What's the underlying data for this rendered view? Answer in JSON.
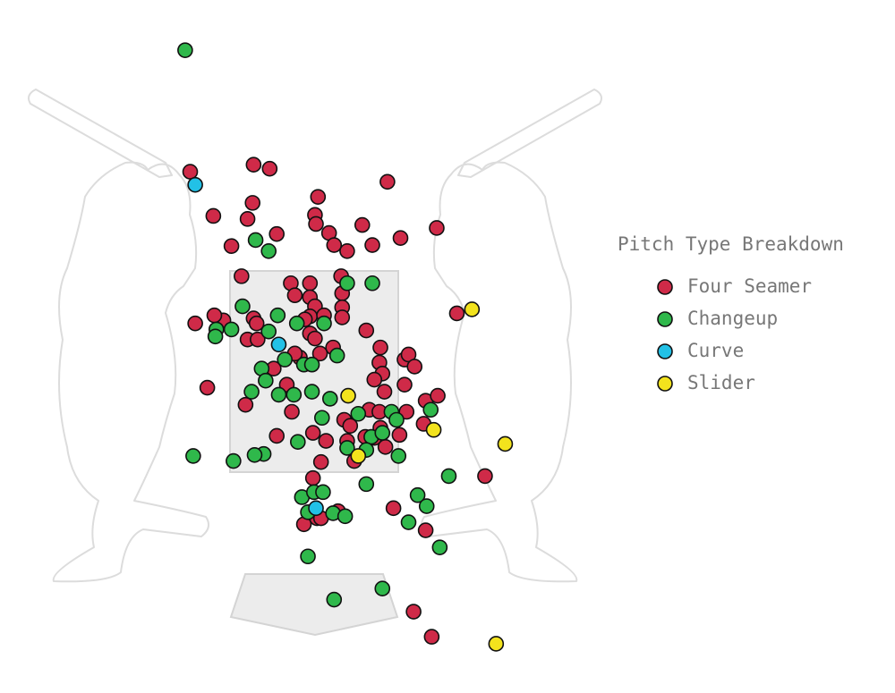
{
  "chart_data": {
    "type": "scatter",
    "legend_title": "Pitch Type Breakdown",
    "xlim": [
      -3.12,
      2.75
    ],
    "ylim": [
      -0.7,
      6.2
    ],
    "series": [
      {
        "name": "Four Seamer",
        "color": "#cf2a48",
        "x": [
          -1.23,
          -0.6,
          -0.44,
          0.73,
          0.04,
          -0.61,
          -1.0,
          -0.66,
          0.01,
          0.02,
          0.15,
          0.48,
          1.22,
          0.86,
          0.2,
          0.33,
          0.58,
          -0.82,
          -0.37,
          -0.72,
          -0.23,
          -0.04,
          0.27,
          -0.19,
          -0.04,
          0.28,
          0.01,
          0.28,
          -0.04,
          0.1,
          0.28,
          -0.09,
          -0.6,
          -0.57,
          -0.9,
          -0.99,
          -1.18,
          -0.66,
          -0.56,
          -0.04,
          0.01,
          0.52,
          0.66,
          0.19,
          0.06,
          -0.14,
          -0.19,
          -0.4,
          -0.27,
          -0.68,
          -1.06,
          0.65,
          0.68,
          0.9,
          0.94,
          1.0,
          0.6,
          0.7,
          0.9,
          1.11,
          1.23,
          -0.22,
          0.55,
          0.65,
          0.92,
          0.3,
          0.36,
          0.66,
          0.51,
          0.6,
          0.85,
          1.09,
          -0.01,
          0.12,
          -0.37,
          0.33,
          0.4,
          0.71,
          0.07,
          -0.01,
          0.79,
          0.24,
          0.03,
          -0.1,
          0.07,
          1.42,
          1.7,
          1.11,
          0.99,
          1.17
        ],
        "values": [
          4.49,
          4.56,
          4.52,
          4.39,
          4.24,
          4.18,
          4.05,
          4.02,
          4.06,
          3.97,
          3.88,
          3.96,
          3.93,
          3.83,
          3.76,
          3.7,
          3.76,
          3.75,
          3.87,
          3.45,
          3.38,
          3.38,
          3.45,
          3.26,
          3.24,
          3.28,
          3.15,
          3.14,
          3.05,
          3.06,
          3.04,
          3.02,
          3.03,
          2.98,
          3.01,
          3.06,
          2.98,
          2.82,
          2.82,
          2.88,
          2.83,
          2.91,
          2.74,
          2.74,
          2.68,
          2.64,
          2.68,
          2.53,
          2.37,
          2.17,
          2.34,
          2.59,
          2.48,
          2.62,
          2.67,
          2.55,
          2.42,
          2.3,
          2.37,
          2.21,
          2.26,
          2.1,
          2.12,
          2.1,
          2.1,
          2.02,
          1.96,
          1.94,
          1.85,
          1.84,
          1.87,
          1.98,
          1.89,
          1.81,
          1.86,
          1.81,
          1.61,
          1.75,
          1.6,
          1.44,
          1.14,
          1.11,
          1.04,
          0.98,
          1.04,
          3.08,
          1.46,
          0.92,
          0.11,
          -0.14
        ]
      },
      {
        "name": "Changeup",
        "color": "#2fb84b",
        "x": [
          -1.28,
          -0.58,
          -0.45,
          0.33,
          0.58,
          -0.71,
          -0.97,
          -0.98,
          -0.82,
          -0.45,
          -0.36,
          -0.17,
          -0.29,
          -0.52,
          -0.48,
          -0.62,
          -0.35,
          -0.2,
          -0.02,
          -0.1,
          -0.02,
          0.23,
          0.1,
          0.16,
          0.44,
          0.77,
          0.82,
          0.57,
          0.52,
          0.68,
          0.84,
          1.16,
          0.08,
          -0.16,
          0.33,
          -0.5,
          -0.59,
          -0.8,
          -1.2,
          0.52,
          1.34,
          -0.12,
          0.0,
          0.09,
          -0.06,
          0.19,
          0.31,
          1.03,
          1.12,
          0.94,
          1.25,
          -0.06,
          0.2,
          0.68
        ],
        "values": [
          5.7,
          3.81,
          3.7,
          3.38,
          3.38,
          3.15,
          2.92,
          2.85,
          2.92,
          2.9,
          3.06,
          2.98,
          2.62,
          2.53,
          2.41,
          2.3,
          2.27,
          2.27,
          2.3,
          2.57,
          2.57,
          2.66,
          2.98,
          2.23,
          2.08,
          2.1,
          2.02,
          1.85,
          1.72,
          1.89,
          1.66,
          2.12,
          2.04,
          1.8,
          1.74,
          1.68,
          1.67,
          1.61,
          1.66,
          1.38,
          1.46,
          1.25,
          1.3,
          1.3,
          1.1,
          1.09,
          1.06,
          1.27,
          1.16,
          1.0,
          0.75,
          0.66,
          0.23,
          0.34
        ]
      },
      {
        "name": "Curve",
        "color": "#22c1e6",
        "x": [
          -1.18,
          -0.35,
          0.02
        ],
        "values": [
          4.36,
          2.77,
          1.14
        ]
      },
      {
        "name": "Slider",
        "color": "#f3e31d",
        "x": [
          1.57,
          0.34,
          1.19,
          1.9,
          0.44,
          1.81
        ],
        "values": [
          3.12,
          2.26,
          1.92,
          1.78,
          1.66,
          -0.21
        ]
      }
    ]
  }
}
